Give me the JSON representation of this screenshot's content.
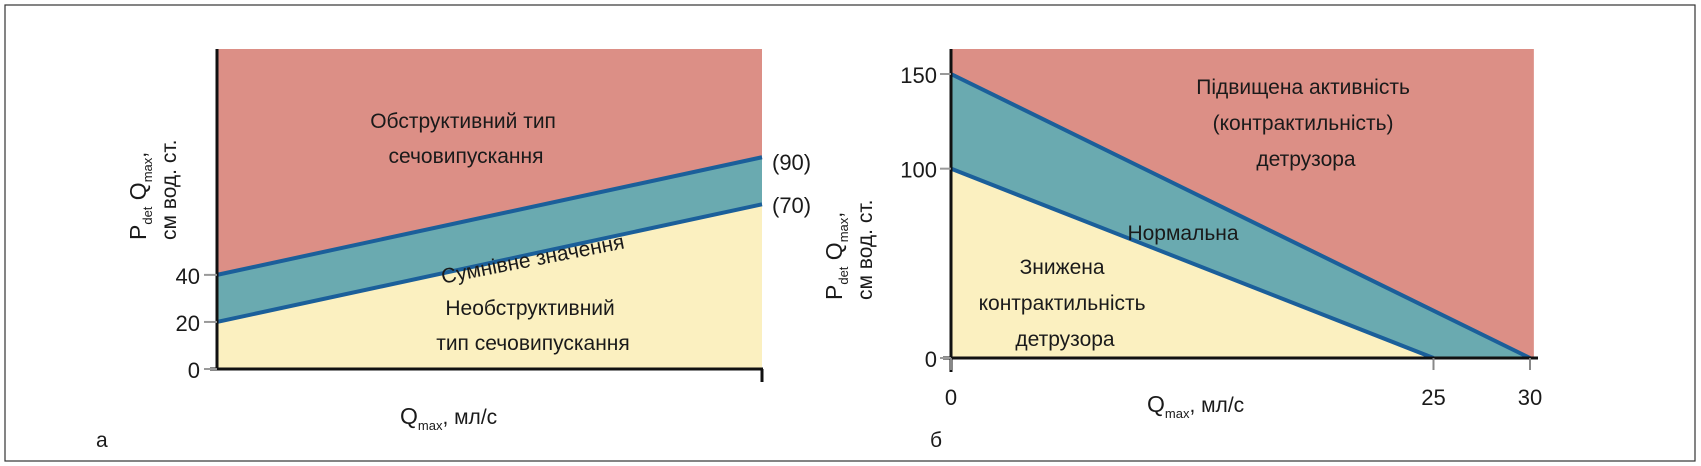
{
  "colors": {
    "red": "#dc8f86",
    "teal": "#6aaab0",
    "yellow": "#fbf0c0",
    "line": "#1b5f9a"
  },
  "chart_data": [
    {
      "type": "area",
      "panel_label": "а",
      "xlabel_main": "Q",
      "xlabel_sub": "max",
      "xlabel_unit": ", мл/с",
      "ylabel_line1_main": "P",
      "ylabel_line1_sub": "det",
      "ylabel_line1_main2": " Q",
      "ylabel_line1_sub2": "max",
      "ylabel_line1_end": ",",
      "ylabel_line2": "см вод. ст.",
      "ylim": [
        0,
        136
      ],
      "xlim": [
        0,
        1
      ],
      "yticks": [
        "0",
        "20",
        "40"
      ],
      "ytick_values": [
        0,
        20,
        40
      ],
      "lines": [
        {
          "name": "upper",
          "y_start": 40,
          "y_end": 90,
          "end_label": "(90)"
        },
        {
          "name": "lower",
          "y_start": 20,
          "y_end": 70,
          "end_label": "(70)"
        }
      ],
      "regions": [
        {
          "text": [
            "Обструктивний тип",
            "сечовипускання"
          ]
        },
        {
          "text": [
            "Сумнівне значення"
          ]
        },
        {
          "text": [
            "Необструктивний",
            "тип сечовипускання"
          ]
        }
      ]
    },
    {
      "type": "area",
      "panel_label": "б",
      "xlabel_main": "Q",
      "xlabel_sub": "max",
      "xlabel_unit": ", мл/с",
      "ylabel_line1_main": "P",
      "ylabel_line1_sub": "det",
      "ylabel_line1_main2": " Q",
      "ylabel_line1_sub2": "max",
      "ylabel_line1_end": ",",
      "ylabel_line2": "см вод. ст.",
      "xlim": [
        0,
        30.2
      ],
      "ylim": [
        0,
        165
      ],
      "xticks": [
        "0",
        "25",
        "30"
      ],
      "xtick_values": [
        0,
        25,
        30
      ],
      "yticks": [
        "0",
        "100",
        "150"
      ],
      "ytick_values": [
        0,
        100,
        150
      ],
      "lines": [
        {
          "name": "upper",
          "x": [
            0,
            30
          ],
          "y": [
            150,
            0
          ]
        },
        {
          "name": "lower",
          "x": [
            0,
            25
          ],
          "y": [
            100,
            0
          ]
        }
      ],
      "regions": [
        {
          "text": [
            "Підвищена активність",
            "(контрактильність)",
            "детрузора"
          ]
        },
        {
          "text": [
            "Нормальна"
          ]
        },
        {
          "text": [
            "Знижена",
            "контрактильність",
            "детрузора"
          ]
        }
      ]
    }
  ]
}
